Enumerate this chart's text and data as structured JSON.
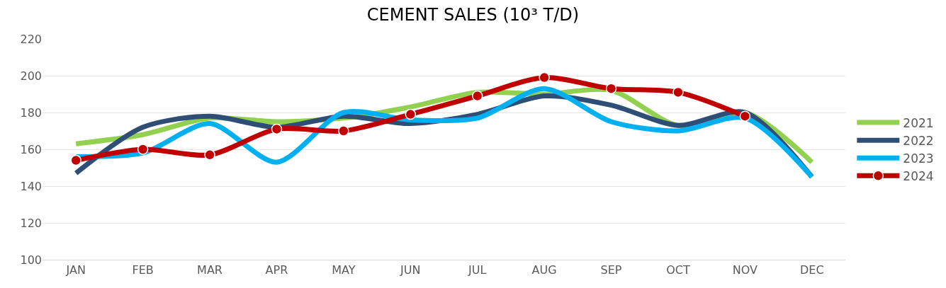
{
  "chart_data": {
    "type": "line",
    "title": "CEMENT SALES (10³ T/D)",
    "categories": [
      "JAN",
      "FEB",
      "MAR",
      "APR",
      "MAY",
      "JUN",
      "JUL",
      "AUG",
      "SEP",
      "OCT",
      "NOV",
      "DEC"
    ],
    "series": [
      {
        "name": "2021",
        "color": "#92d050",
        "marker": "none",
        "values": [
          163,
          168,
          177,
          175,
          177,
          183,
          191,
          190,
          192,
          173,
          180,
          153
        ]
      },
      {
        "name": "2022",
        "color": "#2e4e76",
        "marker": "none",
        "values": [
          147,
          172,
          178,
          172,
          178,
          174,
          179,
          189,
          184,
          173,
          180,
          145
        ]
      },
      {
        "name": "2023",
        "color": "#00b0f0",
        "marker": "none",
        "values": [
          156,
          158,
          174,
          153,
          180,
          176,
          177,
          193,
          175,
          170,
          177,
          145
        ]
      },
      {
        "name": "2024",
        "color": "#c00000",
        "marker": "circle",
        "values": [
          154,
          160,
          157,
          171,
          170,
          179,
          189,
          199,
          193,
          191,
          178,
          null
        ]
      }
    ],
    "ylim": [
      100,
      220
    ],
    "yticks": [
      100,
      120,
      140,
      160,
      180,
      200,
      220
    ],
    "grid": "y",
    "legend": "right",
    "line_style": "solid"
  }
}
